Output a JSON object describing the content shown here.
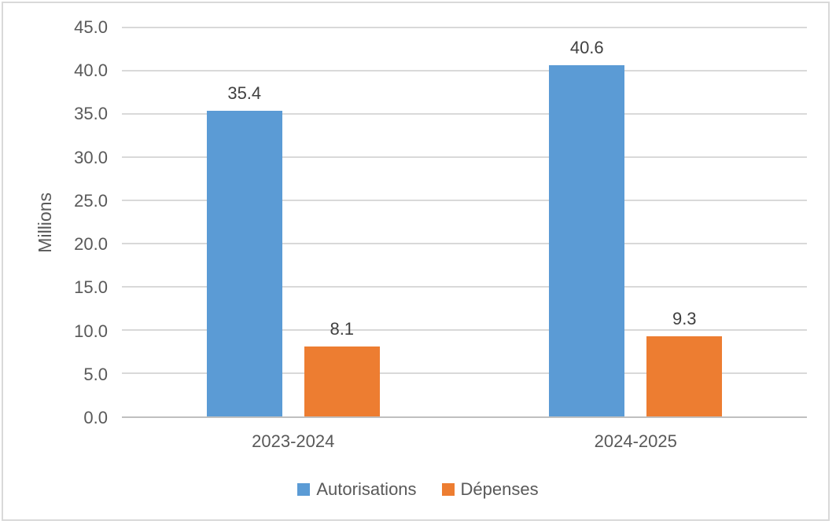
{
  "chart_data": {
    "type": "bar",
    "title": "",
    "categories": [
      "2023-2024",
      "2024-2025"
    ],
    "series": [
      {
        "name": "Autorisations",
        "values": [
          35.4,
          40.6
        ],
        "labels": [
          "35.4",
          "40.6"
        ],
        "color": "#5B9BD5"
      },
      {
        "name": "Dépenses",
        "values": [
          8.1,
          9.3
        ],
        "labels": [
          "8.1",
          "9.3"
        ],
        "color": "#ED7D31"
      }
    ],
    "xlabel": "",
    "ylabel": "Millions",
    "ylim": [
      0,
      45
    ],
    "ytick_step": 5,
    "ytick_decimals": 1,
    "grid": true,
    "data_labels": true,
    "legend_position": "bottom"
  },
  "style": {
    "background": "#FFFFFF",
    "frame_border_color": "#D9D9D9",
    "gridline_color": "#D9D9D9",
    "axis_line_color": "#BFBFBF",
    "tick_label_color": "#595959",
    "axis_title_color": "#595959",
    "category_label_color": "#595959",
    "data_label_color": "#404040",
    "legend_text_color": "#595959"
  }
}
